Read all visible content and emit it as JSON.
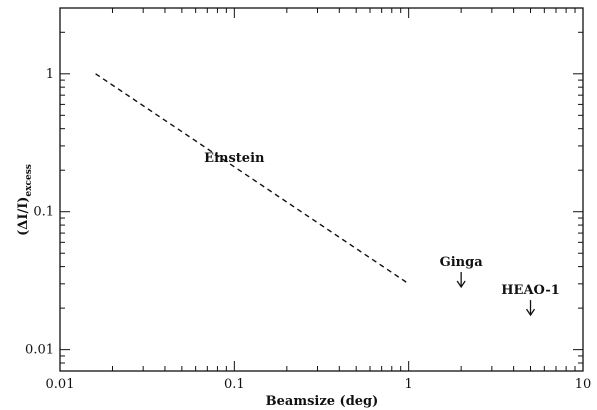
{
  "chart_data": {
    "type": "line",
    "xscale": "log",
    "yscale": "log",
    "xlim": [
      0.01,
      10
    ],
    "ylim": [
      0.007,
      3
    ],
    "xlabel": "Beamsize (deg)",
    "ylabel_main": "(ΔI/I)",
    "ylabel_sub": "excess",
    "xticks": [
      {
        "value": 0.01,
        "label": "0.01"
      },
      {
        "value": 0.1,
        "label": "0.1"
      },
      {
        "value": 1,
        "label": "1"
      },
      {
        "value": 10,
        "label": "10"
      }
    ],
    "yticks": [
      {
        "value": 0.01,
        "label": "0.01"
      },
      {
        "value": 0.1,
        "label": "0.1"
      },
      {
        "value": 1,
        "label": "1"
      }
    ],
    "series": [
      {
        "name": "Einstein",
        "style": "dashed",
        "points": [
          {
            "x": 0.016,
            "y": 1.0
          },
          {
            "x": 1.0,
            "y": 0.03
          }
        ]
      }
    ],
    "upper_limits": [
      {
        "name": "Ginga",
        "x": 2.0,
        "y": 0.032
      },
      {
        "name": "HEAO-1",
        "x": 5.0,
        "y": 0.02
      }
    ],
    "annotations": [
      {
        "text": "Einstein",
        "x": 0.1,
        "y": 0.23
      }
    ]
  }
}
